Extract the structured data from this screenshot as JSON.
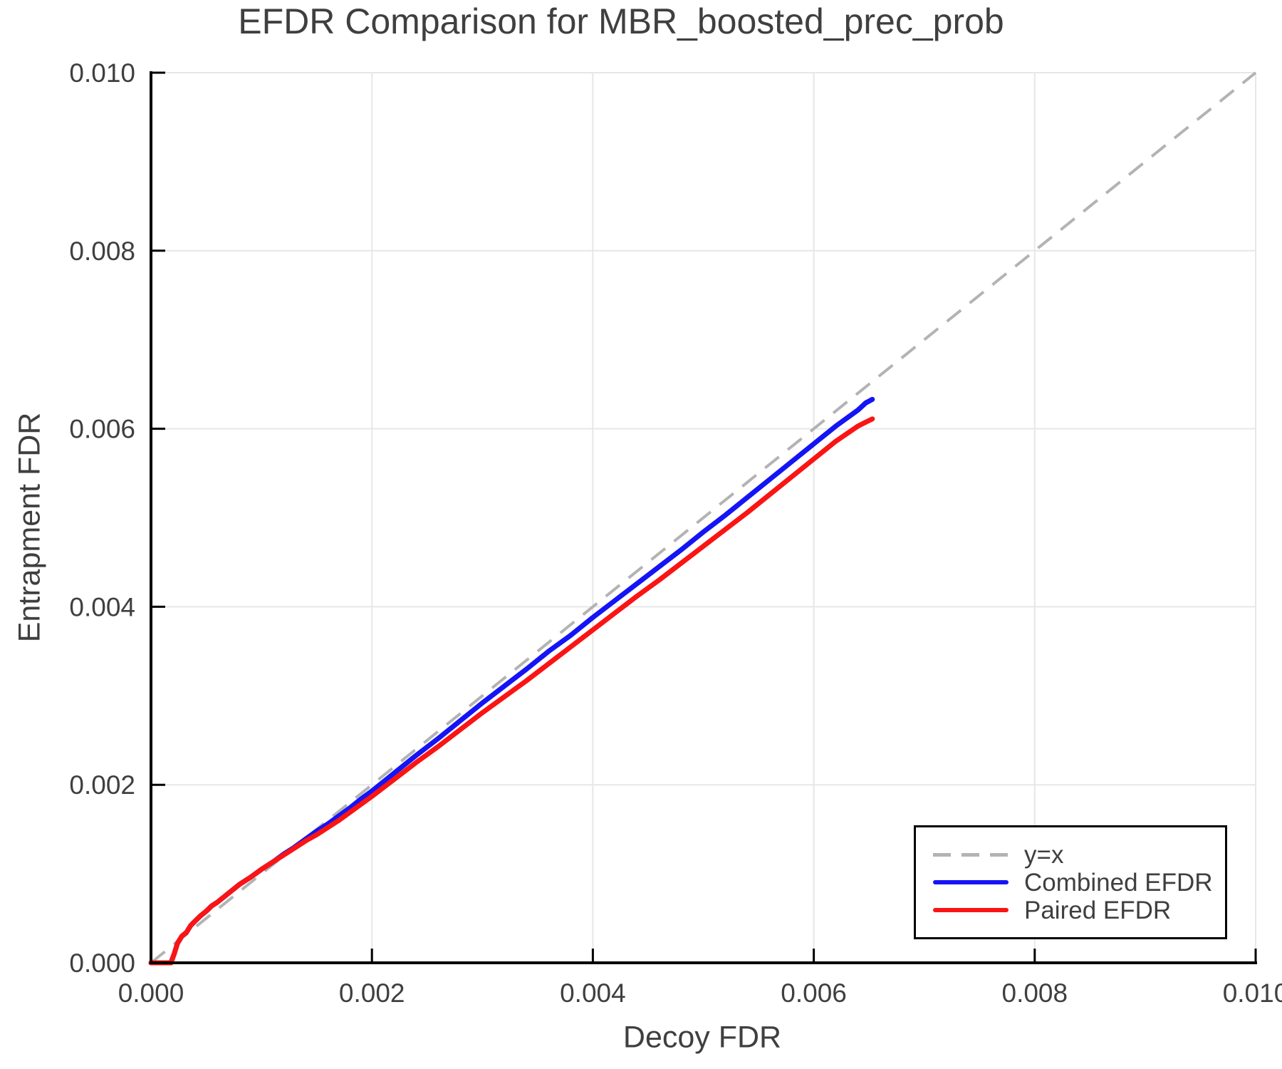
{
  "title": "EFDR Comparison for MBR_boosted_prec_prob",
  "axes": {
    "x_label": "Decoy FDR",
    "y_label": "Entrapment FDR"
  },
  "legend": {
    "items": [
      {
        "label": "y=x",
        "color": "#b3b3b3",
        "style": "dashed"
      },
      {
        "label": "Combined EFDR",
        "color": "#1414f5",
        "style": "solid"
      },
      {
        "label": "Paired EFDR",
        "color": "#fa1414",
        "style": "solid"
      }
    ]
  },
  "chart_data": {
    "type": "line",
    "title": "EFDR Comparison for MBR_boosted_prec_prob",
    "xlabel": "Decoy FDR",
    "ylabel": "Entrapment FDR",
    "xlim": [
      0.0,
      0.01
    ],
    "ylim": [
      0.0,
      0.01
    ],
    "grid": true,
    "legend_position": "lower-right",
    "colors": {
      "grid": "#e7e7e7",
      "reference": "#b3b3b3",
      "spine": "#000000",
      "tick_text": "#3f3f3f"
    },
    "xticks": {
      "values": [
        0.0,
        0.002,
        0.004,
        0.006,
        0.008,
        0.01
      ],
      "labels": [
        "0.000",
        "0.002",
        "0.004",
        "0.006",
        "0.008",
        "0.010"
      ]
    },
    "yticks": {
      "values": [
        0.0,
        0.002,
        0.004,
        0.006,
        0.008,
        0.01
      ],
      "labels": [
        "0.000",
        "0.002",
        "0.004",
        "0.006",
        "0.008",
        "0.010"
      ]
    },
    "reference_line": {
      "name": "y=x",
      "color": "#b3b3b3",
      "dashed": true,
      "points": [
        [
          0.0,
          0.0
        ],
        [
          0.01,
          0.01
        ]
      ]
    },
    "series": [
      {
        "name": "Combined EFDR",
        "color": "#1414f5",
        "points": [
          [
            0.0,
            0.0
          ],
          [
            0.00018,
            0.0
          ],
          [
            0.00021,
            0.0001
          ],
          [
            0.00024,
            0.00022
          ],
          [
            0.00028,
            0.0003
          ],
          [
            0.00032,
            0.00034
          ],
          [
            0.00036,
            0.00042
          ],
          [
            0.0004,
            0.00047
          ],
          [
            0.00045,
            0.00053
          ],
          [
            0.0005,
            0.00058
          ],
          [
            0.00055,
            0.00064
          ],
          [
            0.0006,
            0.00068
          ],
          [
            0.0007,
            0.00078
          ],
          [
            0.0008,
            0.00088
          ],
          [
            0.0009,
            0.00096
          ],
          [
            0.001,
            0.00105
          ],
          [
            0.0011,
            0.00113
          ],
          [
            0.0012,
            0.00122
          ],
          [
            0.0013,
            0.0013
          ],
          [
            0.0014,
            0.00139
          ],
          [
            0.0015,
            0.00148
          ],
          [
            0.0016,
            0.00156
          ],
          [
            0.0017,
            0.00165
          ],
          [
            0.0018,
            0.00174
          ],
          [
            0.0019,
            0.00184
          ],
          [
            0.002,
            0.00193
          ],
          [
            0.0022,
            0.00213
          ],
          [
            0.0024,
            0.00233
          ],
          [
            0.0026,
            0.00252
          ],
          [
            0.0028,
            0.00272
          ],
          [
            0.003,
            0.00292
          ],
          [
            0.0032,
            0.00311
          ],
          [
            0.0034,
            0.0033
          ],
          [
            0.0036,
            0.0035
          ],
          [
            0.0038,
            0.00368
          ],
          [
            0.004,
            0.00388
          ],
          [
            0.0042,
            0.00407
          ],
          [
            0.0044,
            0.00426
          ],
          [
            0.0046,
            0.00445
          ],
          [
            0.0048,
            0.00464
          ],
          [
            0.005,
            0.00484
          ],
          [
            0.0052,
            0.00503
          ],
          [
            0.0054,
            0.00523
          ],
          [
            0.0056,
            0.00543
          ],
          [
            0.0058,
            0.00563
          ],
          [
            0.006,
            0.00583
          ],
          [
            0.0062,
            0.00603
          ],
          [
            0.0064,
            0.00621
          ],
          [
            0.00647,
            0.00629
          ],
          [
            0.00653,
            0.00633
          ]
        ]
      },
      {
        "name": "Paired EFDR",
        "color": "#fa1414",
        "points": [
          [
            0.0,
            0.0
          ],
          [
            0.00018,
            0.0
          ],
          [
            0.00021,
            0.0001
          ],
          [
            0.00024,
            0.00022
          ],
          [
            0.00028,
            0.0003
          ],
          [
            0.00032,
            0.00034
          ],
          [
            0.00036,
            0.00042
          ],
          [
            0.0004,
            0.00047
          ],
          [
            0.00045,
            0.00053
          ],
          [
            0.0005,
            0.00058
          ],
          [
            0.00055,
            0.00064
          ],
          [
            0.0006,
            0.00068
          ],
          [
            0.0007,
            0.00078
          ],
          [
            0.0008,
            0.00088
          ],
          [
            0.0009,
            0.00096
          ],
          [
            0.001,
            0.00105
          ],
          [
            0.0011,
            0.00113
          ],
          [
            0.0012,
            0.00121
          ],
          [
            0.0013,
            0.00129
          ],
          [
            0.0014,
            0.00137
          ],
          [
            0.0015,
            0.00144
          ],
          [
            0.0016,
            0.00152
          ],
          [
            0.0017,
            0.0016
          ],
          [
            0.0018,
            0.00169
          ],
          [
            0.0019,
            0.00178
          ],
          [
            0.002,
            0.00187
          ],
          [
            0.0022,
            0.00206
          ],
          [
            0.0024,
            0.00225
          ],
          [
            0.0026,
            0.00243
          ],
          [
            0.0028,
            0.00262
          ],
          [
            0.003,
            0.00281
          ],
          [
            0.0032,
            0.00299
          ],
          [
            0.0034,
            0.00317
          ],
          [
            0.0036,
            0.00336
          ],
          [
            0.0038,
            0.00355
          ],
          [
            0.004,
            0.00374
          ],
          [
            0.0042,
            0.00393
          ],
          [
            0.0044,
            0.00412
          ],
          [
            0.0046,
            0.0043
          ],
          [
            0.0048,
            0.00449
          ],
          [
            0.005,
            0.00468
          ],
          [
            0.0052,
            0.00487
          ],
          [
            0.0054,
            0.00506
          ],
          [
            0.0056,
            0.00526
          ],
          [
            0.0058,
            0.00546
          ],
          [
            0.006,
            0.00566
          ],
          [
            0.0062,
            0.00586
          ],
          [
            0.0064,
            0.00603
          ],
          [
            0.00648,
            0.00608
          ],
          [
            0.00653,
            0.00611
          ]
        ]
      }
    ]
  }
}
